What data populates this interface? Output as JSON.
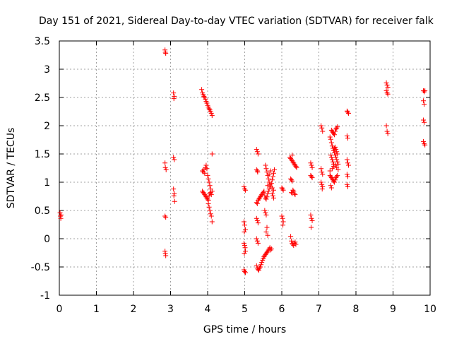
{
  "chart_data": {
    "type": "scatter",
    "title": "Day 151 of 2021, Sidereal Day-to-day VTEC variation (SDTVAR) for receiver falk",
    "xlabel": "GPS time / hours",
    "ylabel": "SDTVAR / TECUs",
    "xlim": [
      0,
      10
    ],
    "ylim": [
      -1,
      3.5
    ],
    "xticks": [
      0,
      1,
      2,
      3,
      4,
      5,
      6,
      7,
      8,
      9,
      10
    ],
    "yticks": [
      -1,
      -0.5,
      0,
      0.5,
      1,
      1.5,
      2,
      2.5,
      3,
      3.5
    ],
    "xtick_labels": [
      "0",
      "1",
      "2",
      "3",
      "4",
      "5",
      "6",
      "7",
      "8",
      "9",
      "10"
    ],
    "ytick_labels": [
      "-1",
      "-0.5",
      "0",
      "0.5",
      "1",
      "1.5",
      "2",
      "2.5",
      "3",
      "3.5"
    ],
    "grid": true,
    "marker": "+",
    "series": [
      {
        "name": "SDTVAR",
        "color": "#ff0000",
        "points": [
          [
            0.02,
            0.46
          ],
          [
            0.03,
            0.4
          ],
          [
            0.04,
            0.36
          ],
          [
            0.05,
            0.42
          ],
          [
            2.85,
            3.34
          ],
          [
            2.86,
            3.3
          ],
          [
            2.87,
            3.28
          ],
          [
            2.85,
            1.34
          ],
          [
            2.86,
            1.26
          ],
          [
            2.88,
            1.22
          ],
          [
            2.85,
            0.4
          ],
          [
            2.87,
            0.38
          ],
          [
            2.85,
            -0.22
          ],
          [
            2.86,
            -0.26
          ],
          [
            2.87,
            -0.3
          ],
          [
            3.08,
            2.58
          ],
          [
            3.1,
            2.52
          ],
          [
            3.09,
            2.48
          ],
          [
            3.08,
            1.44
          ],
          [
            3.1,
            1.4
          ],
          [
            3.08,
            0.88
          ],
          [
            3.1,
            0.8
          ],
          [
            3.09,
            0.76
          ],
          [
            3.11,
            0.66
          ],
          [
            3.84,
            2.64
          ],
          [
            3.86,
            2.58
          ],
          [
            3.88,
            2.55
          ],
          [
            3.9,
            2.52
          ],
          [
            3.92,
            2.5
          ],
          [
            3.94,
            2.47
          ],
          [
            3.96,
            2.43
          ],
          [
            3.98,
            2.4
          ],
          [
            4.0,
            2.36
          ],
          [
            4.02,
            2.33
          ],
          [
            4.04,
            2.3
          ],
          [
            4.06,
            2.28
          ],
          [
            4.08,
            2.25
          ],
          [
            4.1,
            2.22
          ],
          [
            4.12,
            2.18
          ],
          [
            3.86,
            1.2
          ],
          [
            3.88,
            1.18
          ],
          [
            3.9,
            1.22
          ],
          [
            3.92,
            1.16
          ],
          [
            3.94,
            1.26
          ],
          [
            3.96,
            1.3
          ],
          [
            3.98,
            1.24
          ],
          [
            4.0,
            1.12
          ],
          [
            4.02,
            1.06
          ],
          [
            4.04,
            1.0
          ],
          [
            4.06,
            0.94
          ],
          [
            4.08,
            0.88
          ],
          [
            4.12,
            1.5
          ],
          [
            3.86,
            0.84
          ],
          [
            3.88,
            0.82
          ],
          [
            3.9,
            0.8
          ],
          [
            3.92,
            0.78
          ],
          [
            3.94,
            0.76
          ],
          [
            3.96,
            0.74
          ],
          [
            3.98,
            0.72
          ],
          [
            4.0,
            0.7
          ],
          [
            4.02,
            0.68
          ],
          [
            4.04,
            0.76
          ],
          [
            4.06,
            0.8
          ],
          [
            4.08,
            0.82
          ],
          [
            4.1,
            0.78
          ],
          [
            4.12,
            0.84
          ],
          [
            4.02,
            0.62
          ],
          [
            4.04,
            0.56
          ],
          [
            4.06,
            0.5
          ],
          [
            4.08,
            0.44
          ],
          [
            4.1,
            0.4
          ],
          [
            4.12,
            0.3
          ],
          [
            4.98,
            0.92
          ],
          [
            5.0,
            0.88
          ],
          [
            5.02,
            0.86
          ],
          [
            4.98,
            0.3
          ],
          [
            5.0,
            0.24
          ],
          [
            5.02,
            0.16
          ],
          [
            4.99,
            0.12
          ],
          [
            4.98,
            -0.08
          ],
          [
            5.0,
            -0.12
          ],
          [
            5.01,
            -0.16
          ],
          [
            5.02,
            -0.22
          ],
          [
            4.99,
            -0.26
          ],
          [
            4.98,
            -0.55
          ],
          [
            5.0,
            -0.58
          ],
          [
            5.02,
            -0.6
          ],
          [
            5.32,
            1.58
          ],
          [
            5.34,
            1.54
          ],
          [
            5.36,
            1.5
          ],
          [
            5.32,
            1.22
          ],
          [
            5.34,
            1.2
          ],
          [
            5.35,
            1.18
          ],
          [
            5.32,
            0.64
          ],
          [
            5.34,
            0.62
          ],
          [
            5.36,
            0.68
          ],
          [
            5.38,
            0.7
          ],
          [
            5.4,
            0.72
          ],
          [
            5.42,
            0.74
          ],
          [
            5.44,
            0.76
          ],
          [
            5.46,
            0.78
          ],
          [
            5.48,
            0.8
          ],
          [
            5.5,
            0.82
          ],
          [
            5.52,
            0.84
          ],
          [
            5.54,
            0.76
          ],
          [
            5.56,
            0.72
          ],
          [
            5.58,
            0.7
          ],
          [
            5.6,
            0.74
          ],
          [
            5.62,
            0.8
          ],
          [
            5.64,
            0.84
          ],
          [
            5.66,
            0.88
          ],
          [
            5.32,
            0.36
          ],
          [
            5.34,
            0.32
          ],
          [
            5.36,
            0.28
          ],
          [
            5.32,
            0.0
          ],
          [
            5.34,
            -0.04
          ],
          [
            5.36,
            -0.08
          ],
          [
            5.32,
            -0.48
          ],
          [
            5.34,
            -0.52
          ],
          [
            5.36,
            -0.54
          ],
          [
            5.38,
            -0.56
          ],
          [
            5.4,
            -0.52
          ],
          [
            5.42,
            -0.5
          ],
          [
            5.44,
            -0.46
          ],
          [
            5.46,
            -0.42
          ],
          [
            5.48,
            -0.38
          ],
          [
            5.5,
            -0.35
          ],
          [
            5.52,
            -0.32
          ],
          [
            5.54,
            -0.3
          ],
          [
            5.56,
            -0.28
          ],
          [
            5.58,
            -0.26
          ],
          [
            5.6,
            -0.24
          ],
          [
            5.62,
            -0.22
          ],
          [
            5.64,
            -0.2
          ],
          [
            5.66,
            -0.18
          ],
          [
            5.68,
            -0.16
          ],
          [
            5.7,
            -0.2
          ],
          [
            5.72,
            -0.18
          ],
          [
            5.56,
            1.3
          ],
          [
            5.58,
            1.24
          ],
          [
            5.6,
            1.18
          ],
          [
            5.62,
            1.12
          ],
          [
            5.64,
            1.06
          ],
          [
            5.66,
            1.0
          ],
          [
            5.68,
            0.96
          ],
          [
            5.7,
            0.92
          ],
          [
            5.72,
            0.98
          ],
          [
            5.74,
            1.04
          ],
          [
            5.76,
            1.1
          ],
          [
            5.78,
            1.16
          ],
          [
            5.8,
            1.22
          ],
          [
            5.62,
            0.94
          ],
          [
            5.66,
            1.14
          ],
          [
            5.7,
            1.2
          ],
          [
            5.74,
            0.9
          ],
          [
            5.78,
            0.86
          ],
          [
            5.54,
            0.5
          ],
          [
            5.56,
            0.46
          ],
          [
            5.58,
            0.42
          ],
          [
            5.6,
            0.2
          ],
          [
            5.58,
            0.12
          ],
          [
            5.62,
            0.06
          ],
          [
            5.74,
            0.8
          ],
          [
            5.76,
            0.76
          ],
          [
            5.78,
            0.72
          ],
          [
            6.0,
            0.9
          ],
          [
            6.02,
            0.88
          ],
          [
            6.04,
            0.86
          ],
          [
            6.0,
            0.4
          ],
          [
            6.02,
            0.36
          ],
          [
            6.04,
            0.3
          ],
          [
            6.03,
            0.24
          ],
          [
            6.22,
            1.44
          ],
          [
            6.24,
            1.42
          ],
          [
            6.26,
            1.4
          ],
          [
            6.28,
            1.38
          ],
          [
            6.3,
            1.36
          ],
          [
            6.32,
            1.34
          ],
          [
            6.34,
            1.32
          ],
          [
            6.36,
            1.3
          ],
          [
            6.38,
            1.28
          ],
          [
            6.4,
            1.26
          ],
          [
            6.28,
            1.48
          ],
          [
            6.24,
            1.06
          ],
          [
            6.26,
            1.04
          ],
          [
            6.28,
            1.02
          ],
          [
            6.26,
            0.82
          ],
          [
            6.28,
            0.8
          ],
          [
            6.3,
            0.86
          ],
          [
            6.32,
            0.84
          ],
          [
            6.34,
            0.8
          ],
          [
            6.36,
            0.78
          ],
          [
            6.24,
            0.04
          ],
          [
            6.26,
            -0.04
          ],
          [
            6.28,
            -0.08
          ],
          [
            6.3,
            -0.1
          ],
          [
            6.32,
            -0.12
          ],
          [
            6.34,
            -0.08
          ],
          [
            6.36,
            -0.06
          ],
          [
            6.38,
            -0.1
          ],
          [
            6.78,
            1.34
          ],
          [
            6.8,
            1.3
          ],
          [
            6.82,
            1.26
          ],
          [
            6.78,
            1.12
          ],
          [
            6.8,
            1.1
          ],
          [
            6.82,
            1.08
          ],
          [
            6.78,
            0.42
          ],
          [
            6.8,
            0.36
          ],
          [
            6.82,
            0.32
          ],
          [
            6.79,
            0.2
          ],
          [
            7.06,
            2.0
          ],
          [
            7.08,
            1.96
          ],
          [
            7.1,
            1.9
          ],
          [
            7.06,
            1.24
          ],
          [
            7.08,
            1.18
          ],
          [
            7.1,
            1.14
          ],
          [
            7.06,
            1.0
          ],
          [
            7.08,
            0.96
          ],
          [
            7.1,
            0.92
          ],
          [
            7.09,
            0.88
          ],
          [
            7.3,
            1.8
          ],
          [
            7.32,
            1.76
          ],
          [
            7.34,
            1.7
          ],
          [
            7.36,
            1.64
          ],
          [
            7.38,
            1.6
          ],
          [
            7.4,
            1.56
          ],
          [
            7.42,
            1.52
          ],
          [
            7.44,
            1.48
          ],
          [
            7.46,
            1.44
          ],
          [
            7.48,
            1.4
          ],
          [
            7.5,
            1.36
          ],
          [
            7.52,
            1.32
          ],
          [
            7.34,
            1.92
          ],
          [
            7.36,
            1.9
          ],
          [
            7.38,
            1.88
          ],
          [
            7.4,
            1.86
          ],
          [
            7.42,
            1.84
          ],
          [
            7.44,
            1.9
          ],
          [
            7.46,
            1.94
          ],
          [
            7.48,
            1.96
          ],
          [
            7.5,
            1.98
          ],
          [
            7.3,
            1.12
          ],
          [
            7.32,
            1.1
          ],
          [
            7.34,
            1.08
          ],
          [
            7.36,
            1.06
          ],
          [
            7.38,
            1.04
          ],
          [
            7.4,
            1.02
          ],
          [
            7.42,
            1.0
          ],
          [
            7.44,
            1.04
          ],
          [
            7.46,
            1.08
          ],
          [
            7.48,
            1.1
          ],
          [
            7.5,
            1.12
          ],
          [
            7.32,
            0.94
          ],
          [
            7.34,
            0.9
          ],
          [
            7.3,
            1.2
          ],
          [
            7.36,
            1.24
          ],
          [
            7.4,
            1.28
          ],
          [
            7.44,
            1.3
          ],
          [
            7.48,
            1.26
          ],
          [
            7.52,
            1.22
          ],
          [
            7.32,
            1.48
          ],
          [
            7.34,
            1.44
          ],
          [
            7.36,
            1.4
          ],
          [
            7.38,
            1.36
          ],
          [
            7.4,
            1.32
          ],
          [
            7.42,
            1.6
          ],
          [
            7.44,
            1.62
          ],
          [
            7.46,
            1.58
          ],
          [
            7.48,
            1.54
          ],
          [
            7.5,
            1.5
          ],
          [
            7.76,
            2.26
          ],
          [
            7.78,
            2.24
          ],
          [
            7.8,
            2.22
          ],
          [
            7.76,
            1.82
          ],
          [
            7.78,
            1.78
          ],
          [
            7.76,
            1.4
          ],
          [
            7.78,
            1.34
          ],
          [
            7.8,
            1.3
          ],
          [
            7.76,
            1.14
          ],
          [
            7.78,
            1.1
          ],
          [
            7.76,
            0.96
          ],
          [
            7.78,
            0.92
          ],
          [
            8.82,
            2.76
          ],
          [
            8.84,
            2.72
          ],
          [
            8.86,
            2.68
          ],
          [
            8.82,
            2.62
          ],
          [
            8.84,
            2.58
          ],
          [
            8.86,
            2.56
          ],
          [
            8.82,
            2.0
          ],
          [
            8.84,
            1.9
          ],
          [
            8.86,
            1.86
          ],
          [
            9.82,
            2.62
          ],
          [
            9.84,
            2.6
          ],
          [
            9.86,
            2.62
          ],
          [
            9.82,
            2.44
          ],
          [
            9.84,
            2.38
          ],
          [
            9.82,
            2.1
          ],
          [
            9.84,
            2.06
          ],
          [
            9.82,
            1.72
          ],
          [
            9.84,
            1.68
          ],
          [
            9.86,
            1.66
          ]
        ]
      }
    ]
  }
}
